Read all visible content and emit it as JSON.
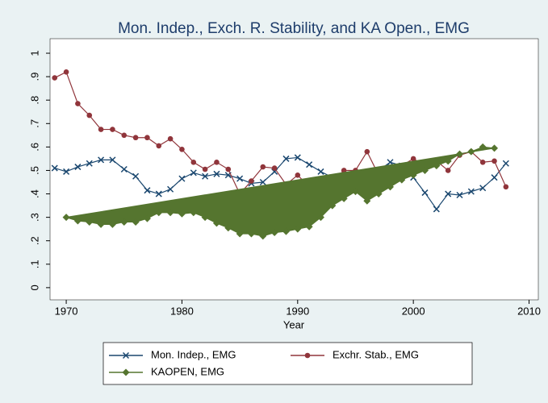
{
  "chart_data": {
    "type": "line",
    "title": "Mon. Indep., Exch. R. Stability, and KA Open., EMG",
    "xlabel": "Year",
    "x": [
      1969,
      1970,
      1971,
      1972,
      1973,
      1974,
      1975,
      1976,
      1977,
      1978,
      1979,
      1980,
      1981,
      1982,
      1983,
      1984,
      1985,
      1986,
      1987,
      1988,
      1989,
      1990,
      1991,
      1992,
      1993,
      1994,
      1995,
      1996,
      1997,
      1998,
      1999,
      2000,
      2001,
      2002,
      2003,
      2004,
      2005,
      2006,
      2007,
      2008
    ],
    "series": [
      {
        "name": "Mon. Indep., EMG",
        "color": "#1a476f",
        "marker": "x",
        "values": [
          0.51,
          0.495,
          0.515,
          0.53,
          0.545,
          0.545,
          0.505,
          0.475,
          0.415,
          0.4,
          0.42,
          0.465,
          0.49,
          0.475,
          0.485,
          0.48,
          0.465,
          0.445,
          0.45,
          0.495,
          0.55,
          0.555,
          0.525,
          0.495,
          0.47,
          0.46,
          0.46,
          0.47,
          0.5,
          0.535,
          0.52,
          0.47,
          0.405,
          0.335,
          0.4,
          0.395,
          0.41,
          0.425,
          0.47,
          0.53
        ]
      },
      {
        "name": "Exchr. Stab., EMG",
        "color": "#90353b",
        "marker": "circle",
        "values": [
          0.895,
          0.92,
          0.785,
          0.735,
          0.675,
          0.675,
          0.65,
          0.64,
          0.64,
          0.605,
          0.635,
          0.59,
          0.535,
          0.505,
          0.535,
          0.505,
          0.4,
          0.455,
          0.515,
          0.51,
          0.44,
          0.48,
          0.43,
          0.44,
          0.45,
          0.5,
          0.5,
          0.58,
          0.48,
          0.5,
          0.52,
          0.55,
          0.52,
          0.54,
          0.5,
          0.565,
          0.58,
          0.535,
          0.54,
          0.43
        ]
      },
      {
        "name": "KAOPEN, EMG",
        "color": "#55752f",
        "marker": "diamond",
        "area": true,
        "values": [
          null,
          0.3,
          0.285,
          0.28,
          0.27,
          0.27,
          0.28,
          0.28,
          0.295,
          0.32,
          0.32,
          0.315,
          0.32,
          0.3,
          0.275,
          0.255,
          0.23,
          0.23,
          0.22,
          0.235,
          0.24,
          0.25,
          0.26,
          0.3,
          0.35,
          0.38,
          0.41,
          0.37,
          0.4,
          0.43,
          0.46,
          0.48,
          0.5,
          0.52,
          0.54,
          0.57,
          0.58,
          0.6,
          0.595,
          null
        ]
      }
    ],
    "xlim": [
      1968.6,
      2010.8
    ],
    "xticks": [
      1970,
      1980,
      1990,
      2000,
      2010
    ],
    "ylim": [
      -0.052,
      1.062
    ],
    "yticks": [
      0,
      {
        "value": 0.1,
        "label": ".1"
      },
      {
        "value": 0.2,
        "label": ".2"
      },
      {
        "value": 0.3,
        "label": ".3"
      },
      {
        "value": 0.4,
        "label": ".4"
      },
      {
        "value": 0.5,
        "label": ".5"
      },
      {
        "value": 0.6,
        "label": ".6"
      },
      {
        "value": 0.7,
        "label": ".7"
      },
      {
        "value": 0.8,
        "label": ".8"
      },
      {
        "value": 0.9,
        "label": ".9"
      },
      1
    ],
    "grid": false
  }
}
